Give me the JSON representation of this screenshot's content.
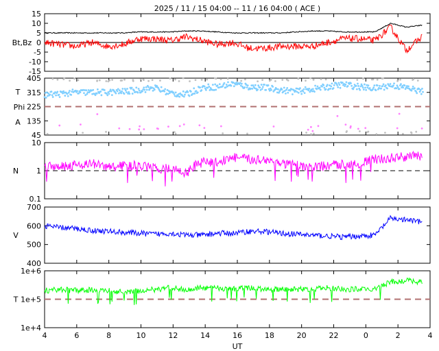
{
  "chart_data": {
    "type": "line",
    "title": "2025 / 11 / 15   04:00 -- 11 / 16   04:00 ( ACE )",
    "xlabel": "UT",
    "x_tick_labels": [
      "4",
      "6",
      "8",
      "10",
      "12",
      "14",
      "16",
      "18",
      "20",
      "22",
      "0",
      "2",
      "4"
    ],
    "x_hours_from_start": [
      0,
      1,
      2,
      3,
      4,
      5,
      6,
      7,
      8,
      9,
      10,
      11,
      12,
      13,
      14,
      15,
      16,
      17,
      18,
      19,
      20,
      21,
      22,
      23,
      23.5
    ],
    "panels": [
      {
        "name": "magnetic-field",
        "ylabel": "Bt,Bz",
        "scale": "linear",
        "ylim": [
          -15,
          15
        ],
        "yticks": [
          "15",
          "10",
          "5",
          "0",
          "-5",
          "-10",
          "-15"
        ],
        "reference_line": 0,
        "series": [
          {
            "name": "Bt",
            "color": "#000000",
            "values": [
              5,
              5,
              5,
              5,
              5,
              5,
              5.5,
              5.5,
              5.5,
              6,
              6,
              5.5,
              5,
              5,
              5,
              5,
              5.5,
              6,
              6,
              5.5,
              5.5,
              5.5,
              10,
              8,
              9
            ]
          },
          {
            "name": "Bz",
            "color": "#ff0000",
            "values": [
              0,
              -1,
              -2,
              0,
              -2,
              -1,
              2,
              2,
              1,
              3,
              1,
              -1,
              0,
              -3,
              -3,
              -2,
              -2,
              -2,
              0,
              2,
              2,
              1,
              8,
              -4,
              3
            ]
          }
        ]
      },
      {
        "name": "phi-angle",
        "ylabel_parts": [
          "T",
          "Phi",
          "A"
        ],
        "scale": "linear",
        "ylim": [
          45,
          405
        ],
        "yticks": [
          "405",
          "315",
          "225",
          "135",
          "45"
        ],
        "reference_line": 225,
        "series": [
          {
            "name": "Phi",
            "color": "#80cfff",
            "values": [
              300,
              305,
              315,
              315,
              315,
              320,
              330,
              345,
              310,
              300,
              345,
              350,
              370,
              350,
              345,
              330,
              320,
              335,
              350,
              365,
              350,
              340,
              360,
              345,
              320
            ]
          },
          {
            "name": "Phi-alt",
            "color": "#c0c0c0",
            "values": [
              395,
              390,
              60,
              395,
              60,
              395,
              60,
              395,
              60,
              390,
              395,
              395,
              60,
              395
            ]
          },
          {
            "name": "A",
            "color": "#ff80ff",
            "values": [
              80,
              140,
              110,
              90,
              95,
              85,
              95,
              80,
              90,
              100,
              90,
              110,
              170
            ]
          }
        ]
      },
      {
        "name": "density",
        "ylabel": "N",
        "scale": "log",
        "ylim": [
          0.1,
          10
        ],
        "yticks": [
          "10",
          "1",
          "0.1"
        ],
        "reference_line": 1,
        "series": [
          {
            "name": "N",
            "color": "#ff00ff",
            "values": [
              1.5,
              1.5,
              1.6,
              1.8,
              1.3,
              1.5,
              1.5,
              1.2,
              1.2,
              0.8,
              2,
              2,
              3,
              2.5,
              2.5,
              1.8,
              1.5,
              1.3,
              1.5,
              1.7,
              1.8,
              2.5,
              2.8,
              3.2,
              3.3
            ]
          }
        ]
      },
      {
        "name": "speed",
        "ylabel": "V",
        "scale": "linear",
        "ylim": [
          400,
          700
        ],
        "yticks": [
          "700",
          "600",
          "500",
          "400"
        ],
        "series": [
          {
            "name": "V",
            "color": "#0000ff",
            "values": [
              600,
              590,
              585,
              575,
              570,
              565,
              560,
              555,
              560,
              550,
              550,
              560,
              560,
              570,
              570,
              560,
              555,
              550,
              545,
              540,
              545,
              550,
              640,
              630,
              620
            ]
          }
        ]
      },
      {
        "name": "temperature",
        "ylabel": "T",
        "scale": "log",
        "ylim": [
          10000,
          1000000
        ],
        "yticks": [
          "1e+6",
          "1e+5",
          "1e+4"
        ],
        "reference_line": 100000,
        "series": [
          {
            "name": "T",
            "color": "#00ff00",
            "values": [
              200000,
              220000,
              200000,
              220000,
              200000,
              180000,
              200000,
              220000,
              250000,
              220000,
              250000,
              250000,
              230000,
              250000,
              230000,
              220000,
              220000,
              230000,
              250000,
              220000,
              230000,
              220000,
              400000,
              450000,
              400000
            ]
          }
        ]
      }
    ]
  }
}
